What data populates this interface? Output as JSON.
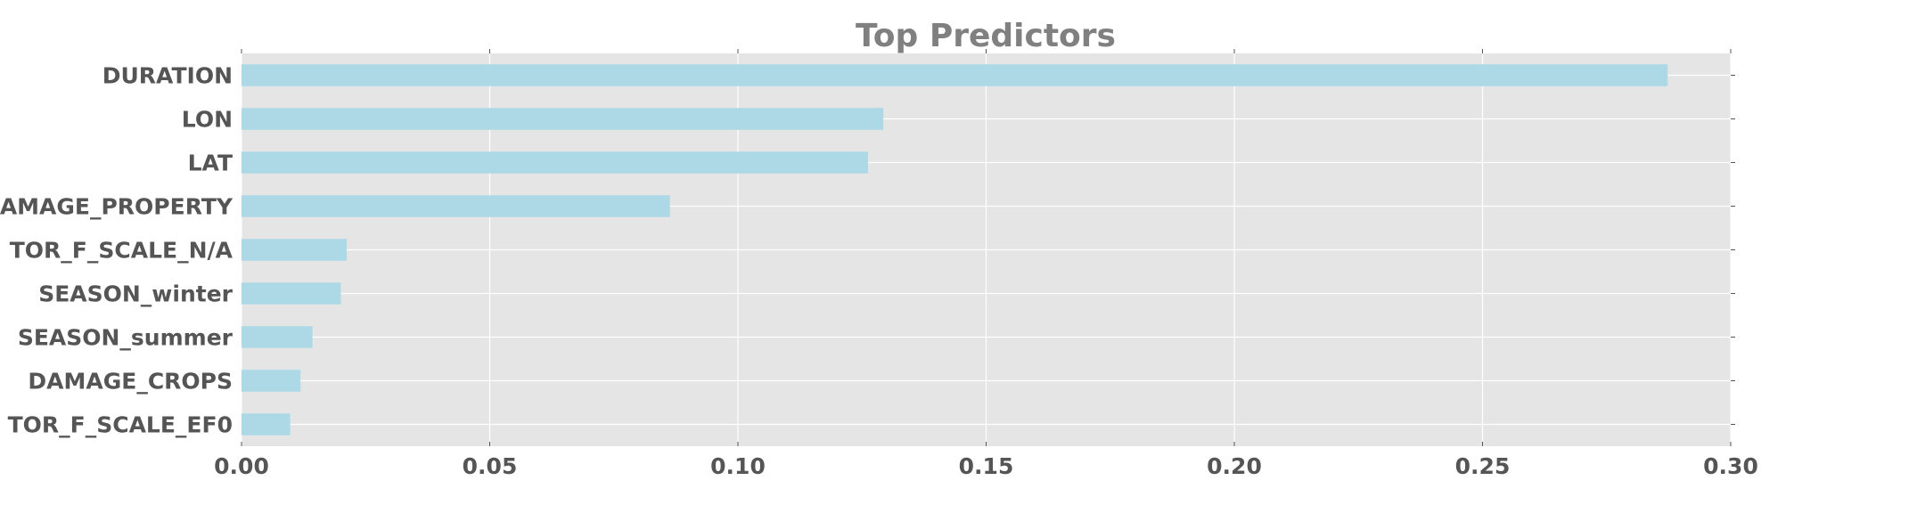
{
  "chart_data": {
    "type": "bar",
    "orientation": "horizontal",
    "title": "Top Predictors",
    "xlabel": "",
    "ylabel": "",
    "categories": [
      "TOR_F_SCALE_EF0",
      "DAMAGE_CROPS",
      "SEASON_summer",
      "SEASON_winter",
      "TOR_F_SCALE_N/A",
      "DAMAGE_PROPERTY",
      "LAT",
      "LON",
      "DURATION"
    ],
    "values": [
      0.0098,
      0.0119,
      0.0143,
      0.02,
      0.0212,
      0.0863,
      0.1262,
      0.1293,
      0.2873
    ],
    "xlim": [
      0.0,
      0.3
    ],
    "xticks": [
      "0.00",
      "0.05",
      "0.10",
      "0.15",
      "0.20",
      "0.25",
      "0.30"
    ],
    "grid": true,
    "legend": "none",
    "colors": {
      "bar": "#add8e6",
      "plot_background": "#e5e5e5",
      "grid": "#ffffff",
      "title": "#808080",
      "tick_label": "#555555"
    }
  }
}
